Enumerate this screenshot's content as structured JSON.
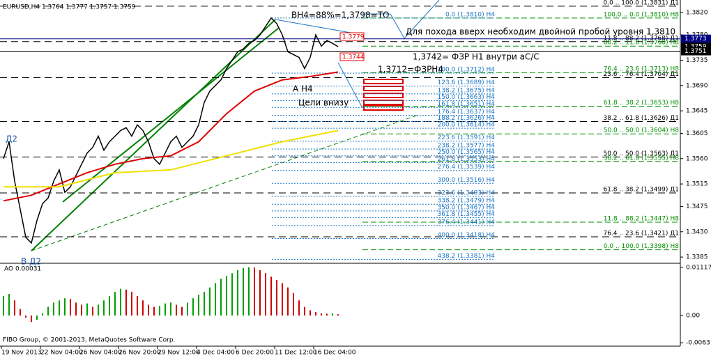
{
  "chart_data": {
    "type": "line",
    "title": "EURUSD,H4  1.3764 1.3777 1.3757 1.3759",
    "copyright": "FIBO Group, © 2001-2013, MetaQuotes Software Corp.",
    "time_labels": [
      "19 Nov 2013",
      "22 Nov 04:00",
      "26 Nov 04:00",
      "26 Nov 20:00",
      "29 Nov 12:00",
      "4 Dec 04:00",
      "6 Dec 20:00",
      "11 Dec 12:00",
      "16 Dec 04:00"
    ],
    "ylim": [
      1.3374,
      1.3842
    ],
    "yticks": [
      {
        "value": 1.382,
        "label": "1.3820"
      },
      {
        "value": 1.378,
        "label": "1.3780"
      },
      1.3735,
      {
        "value": 1.369,
        "label": "1.3690"
      },
      1.3645,
      1.3605,
      {
        "value": 1.356,
        "label": "1.3560"
      },
      1.3515,
      1.3475,
      {
        "value": 1.343,
        "label": "1.3430"
      },
      1.3385
    ],
    "series": [
      {
        "color": "#000000",
        "values": [
          1.356,
          1.359,
          1.352,
          1.347,
          1.342,
          1.341,
          1.345,
          1.348,
          1.349,
          1.352,
          1.354,
          1.35,
          1.351,
          1.353,
          1.355,
          1.357,
          1.358,
          1.36,
          1.3575,
          1.359,
          1.36,
          1.361,
          1.3615,
          1.36,
          1.362,
          1.361,
          1.359,
          1.356,
          1.355,
          1.357,
          1.359,
          1.36,
          1.358,
          1.359,
          1.36,
          1.362,
          1.366,
          1.368,
          1.369,
          1.37,
          1.372,
          1.3735,
          1.375,
          1.3755,
          1.3765,
          1.377,
          1.378,
          1.3795,
          1.381,
          1.38,
          1.378,
          1.375,
          1.3745,
          1.374,
          1.372,
          1.374,
          1.378,
          1.376,
          1.377,
          1.3765,
          1.3759
        ]
      },
      {
        "color": "#e00000",
        "values": [
          1.3485,
          1.3495,
          1.3515,
          1.3535,
          1.355,
          1.356,
          1.3565,
          1.359,
          1.364,
          1.368,
          1.37,
          1.3706,
          1.3714
        ]
      },
      {
        "color": "#f0e000",
        "values": [
          1.351,
          1.351,
          1.3535,
          1.354,
          1.3565,
          1.359,
          1.361
        ]
      }
    ],
    "price_tags": [
      {
        "value": 1.3773,
        "color": "#000080"
      },
      {
        "value": 1.3759,
        "color": "#000000"
      },
      {
        "value": 1.3751,
        "color": "#000000"
      }
    ],
    "fib_groups": [
      {
        "color": "#000000",
        "levels": [
          {
            "price": 1.3831,
            "label": "0.0 .. 100.0 (1.3831) Д1"
          },
          {
            "price": 1.3768,
            "label": "11.8 .. 88.2 (1.3768) Д1"
          },
          {
            "price": 1.3704,
            "label": "23.6 .. 76.4 (1.3704) Д1"
          },
          {
            "price": 1.3626,
            "label": "38.2 .. 61.8 (1.3626) Д1"
          },
          {
            "price": 1.3563,
            "label": "50.0 .. 50.0 (1.3563) Д1"
          },
          {
            "price": 1.3499,
            "label": "61.8 .. 38.2 (1.3499) Д1"
          },
          {
            "price": 1.3421,
            "label": "76.4 .. 23.6 (1.3421) Д1"
          }
        ]
      },
      {
        "color": "#009000",
        "levels": [
          {
            "price": 1.381,
            "label": "100.0 .. 0.0 (1.3810) H8"
          },
          {
            "price": 1.376,
            "label": "88.2 .. 11.8 (1.3760) H8"
          },
          {
            "price": 1.3713,
            "label": "76.4 .. 23.6 (1.3713) H8"
          },
          {
            "price": 1.3653,
            "label": "61.8 .. 38.2 (1.3653) H8"
          },
          {
            "price": 1.3604,
            "label": "50.0 .. 50.0 (1.3604) H8"
          },
          {
            "price": 1.3555,
            "label": "38.2 .. 61.8 (1.3555) H8"
          },
          {
            "price": 1.3447,
            "label": "11.8 .. 88.2 (1.3447) H8"
          },
          {
            "price": 1.3398,
            "label": "0.0 .. 100.0 (1.3398) H8"
          }
        ]
      },
      {
        "color": "#1e78c8",
        "levels": [
          {
            "price": 1.381,
            "label": "0.0 (1.3810) H4"
          },
          {
            "price": 1.3712,
            "label": "100.0 (1.3712) H4"
          },
          {
            "price": 1.3689,
            "label": "123.6 (1.3689) H4"
          },
          {
            "price": 1.3675,
            "label": "138.2 (1.3675) H4"
          },
          {
            "price": 1.3663,
            "label": "150.0 (1.3663) H4"
          },
          {
            "price": 1.3651,
            "label": "161.8 (1.3651) H4"
          },
          {
            "price": 1.3637,
            "label": "176.4 (1.3637) H4"
          },
          {
            "price": 1.3626,
            "label": "188.2 (1.3626) H4"
          },
          {
            "price": 1.3614,
            "label": "200.0 (1.3614) H4"
          },
          {
            "price": 1.3591,
            "label": "223.6 (1.3591) H4"
          },
          {
            "price": 1.3577,
            "label": "238.2 (1.3577) H4"
          },
          {
            "price": 1.3565,
            "label": "250.0 (1.3565) H4"
          },
          {
            "price": 1.3553,
            "label": "261.8 (1.3553) H4"
          },
          {
            "price": 1.3539,
            "label": "276.4 (1.3539) H4"
          },
          {
            "price": 1.3516,
            "label": "300.0 (1.3516) H4"
          },
          {
            "price": 1.3493,
            "label": "323.6 (1.3493) H4"
          },
          {
            "price": 1.3479,
            "label": "338.2 (1.3479) H4"
          },
          {
            "price": 1.3467,
            "label": "350.0 (1.3467) H4"
          },
          {
            "price": 1.3455,
            "label": "361.8 (1.3455) H4"
          },
          {
            "price": 1.3441,
            "label": "376.4 (1.3441) H4"
          },
          {
            "price": 1.3418,
            "label": "400.0 (1.3418) H4"
          },
          {
            "price": 1.3381,
            "label": "438.2 (1.3381) H4"
          }
        ]
      }
    ],
    "annotations": {
      "bh4": "BH4=88%=1,3798=TO",
      "up": "Для похода вверх необходим двойной пробой уровня 1,3810",
      "h1": "1,3742= ФЗР H1 внутри аС/С",
      "h4": "1,3712=ФЗРН4",
      "a": "A H4",
      "targets": "Цели внизу",
      "d2": "Д2",
      "bd2": "В Д2",
      "box1": "1.3779",
      "box2": "1.3744"
    },
    "ao": {
      "title": "AO 0.00031",
      "ylim": [
        -0.0071,
        0.0121
      ],
      "yticks": [
        0.01117,
        {
          "value": 0,
          "label": "0.00"
        },
        -0.00631
      ],
      "values": [
        0.0045,
        0.005,
        0.0035,
        0.0015,
        -0.0005,
        -0.0015,
        -0.001,
        0.0005,
        0.002,
        0.003,
        0.0035,
        0.004,
        0.0038,
        0.003,
        0.0025,
        0.0028,
        0.002,
        0.0025,
        0.0035,
        0.0045,
        0.0055,
        0.0062,
        0.006,
        0.0055,
        0.0045,
        0.0035,
        0.0025,
        0.002,
        0.0022,
        0.0028,
        0.003,
        0.0025,
        0.002,
        0.003,
        0.004,
        0.0048,
        0.0055,
        0.0065,
        0.0075,
        0.0085,
        0.0092,
        0.0098,
        0.0105,
        0.011,
        0.0112,
        0.0111,
        0.0105,
        0.0098,
        0.009,
        0.0082,
        0.0075,
        0.0065,
        0.0052,
        0.0035,
        0.002,
        0.0012,
        0.0008,
        0.0005,
        0.0004,
        0.0005,
        0.0003
      ],
      "up_color": "#00a000",
      "down_color": "#d00000"
    }
  }
}
